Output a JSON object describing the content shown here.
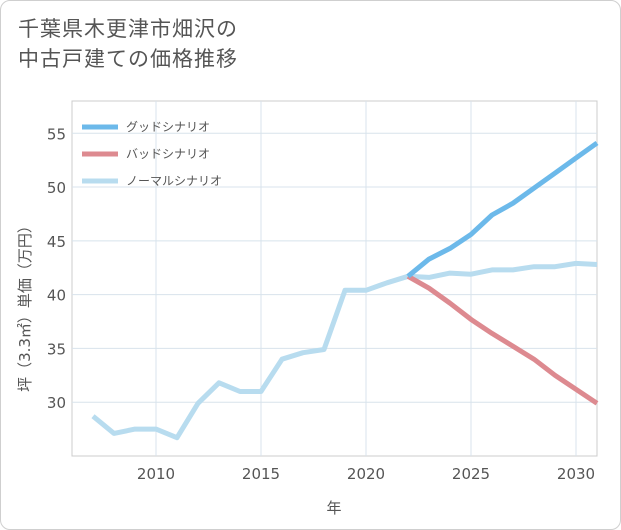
{
  "title": {
    "line1": "千葉県木更津市畑沢の",
    "line2": "中古戸建ての価格推移"
  },
  "chart_data": {
    "type": "line",
    "xlabel": "年",
    "ylabel": "坪（3.3㎡）単価（万円）",
    "xlim": [
      2006,
      2031
    ],
    "ylim": [
      25,
      58
    ],
    "xticks": [
      2010,
      2015,
      2020,
      2025,
      2030
    ],
    "yticks": [
      30,
      35,
      40,
      45,
      50,
      55
    ],
    "grid": true,
    "legend_position": "top-left",
    "series": [
      {
        "name": "グッドシナリオ",
        "color": "#6cb9ea",
        "x": [
          2022,
          2023,
          2024,
          2025,
          2026,
          2027,
          2028,
          2029,
          2030,
          2031
        ],
        "values": [
          41.7,
          43.3,
          44.3,
          45.6,
          47.4,
          48.5,
          49.9,
          51.3,
          52.7,
          54.1
        ]
      },
      {
        "name": "バッドシナリオ",
        "color": "#dd8a90",
        "x": [
          2022,
          2023,
          2024,
          2025,
          2026,
          2027,
          2028,
          2029,
          2030,
          2031
        ],
        "values": [
          41.7,
          40.6,
          39.2,
          37.7,
          36.4,
          35.2,
          34.0,
          32.5,
          31.2,
          29.9
        ]
      },
      {
        "name": "ノーマルシナリオ",
        "color": "#b8dcef",
        "x": [
          2007,
          2008,
          2009,
          2010,
          2011,
          2012,
          2013,
          2014,
          2015,
          2016,
          2017,
          2018,
          2019,
          2020,
          2021,
          2022,
          2023,
          2024,
          2025,
          2026,
          2027,
          2028,
          2029,
          2030,
          2031
        ],
        "values": [
          28.7,
          27.1,
          27.5,
          27.5,
          26.7,
          29.9,
          31.8,
          31.0,
          31.0,
          34.0,
          34.6,
          34.9,
          40.4,
          40.4,
          41.1,
          41.7,
          41.6,
          42.0,
          41.9,
          42.3,
          42.3,
          42.6,
          42.6,
          42.9,
          42.8
        ]
      }
    ]
  }
}
